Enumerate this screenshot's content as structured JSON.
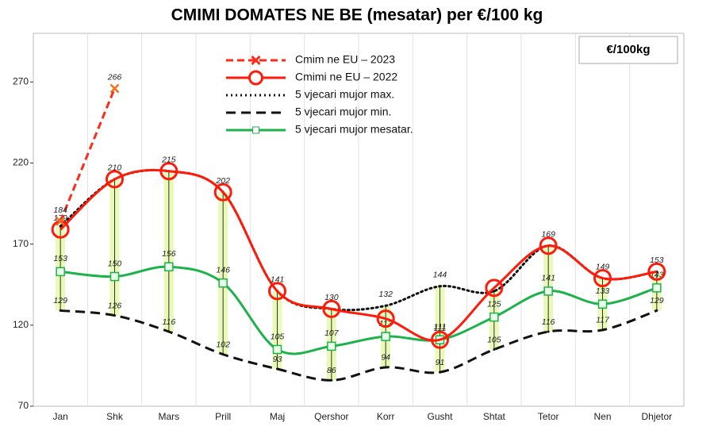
{
  "chart_data": {
    "type": "line",
    "title": "CMIMI DOMATES NE BE (mesatar) per €/100 kg",
    "unit_box": "€/100kg",
    "categories": [
      "Jan",
      "Shk",
      "Mars",
      "Prill",
      "Maj",
      "Qershor",
      "Korr",
      "Gusht",
      "Shtat",
      "Tetor",
      "Nen",
      "Dhjetor"
    ],
    "ylim": [
      70,
      300
    ],
    "yticks": [
      70,
      120,
      170,
      220,
      270
    ],
    "grid": true,
    "series": [
      {
        "name": "Cmim ne EU – 2023",
        "color": "#ff2a1a",
        "style": "dashed",
        "marker": "x",
        "values": [
          184,
          266,
          null,
          null,
          null,
          null,
          null,
          null,
          null,
          null,
          null,
          null
        ],
        "value_labels": [
          "184",
          "266",
          null,
          null,
          null,
          null,
          null,
          null,
          null,
          null,
          null,
          null
        ]
      },
      {
        "name": "Cmimi ne EU – 2022",
        "color": "#ff1a0a",
        "style": "solid",
        "marker": "circle",
        "values": [
          179,
          210,
          215,
          202,
          141,
          130,
          124,
          111,
          143,
          169,
          149,
          153
        ],
        "value_labels": [
          "179",
          "210",
          "215",
          "202",
          "141",
          "130",
          null,
          "111",
          null,
          "169",
          "149",
          "153"
        ]
      },
      {
        "name": "5 vjecari mujor max.",
        "color": "#111111",
        "style": "dotted",
        "marker": "none",
        "values": [
          181,
          210,
          215,
          202,
          141,
          130,
          132,
          144,
          141,
          169,
          149,
          153
        ],
        "value_labels": [
          null,
          null,
          null,
          null,
          null,
          null,
          "132",
          "144",
          null,
          null,
          null,
          null
        ]
      },
      {
        "name": "5 vjecari mujor min.",
        "color": "#111111",
        "style": "longdash",
        "marker": "none",
        "values": [
          129,
          126,
          116,
          102,
          93,
          86,
          94,
          91,
          105,
          116,
          117,
          129
        ],
        "value_labels": [
          "129",
          "126",
          "116",
          "102",
          "93",
          "86",
          "94",
          "91",
          "105",
          "116",
          "117",
          "129"
        ]
      },
      {
        "name": "5 vjecari mujor mesatar.",
        "color": "#1db34a",
        "style": "solid",
        "marker": "square",
        "values": [
          153,
          150,
          156,
          146,
          105,
          107,
          113,
          111,
          125,
          141,
          133,
          143
        ],
        "value_labels": [
          "153",
          "150",
          "156",
          "146",
          "105",
          "107",
          "113",
          "111",
          "125",
          "141",
          "133",
          "143"
        ]
      }
    ]
  }
}
